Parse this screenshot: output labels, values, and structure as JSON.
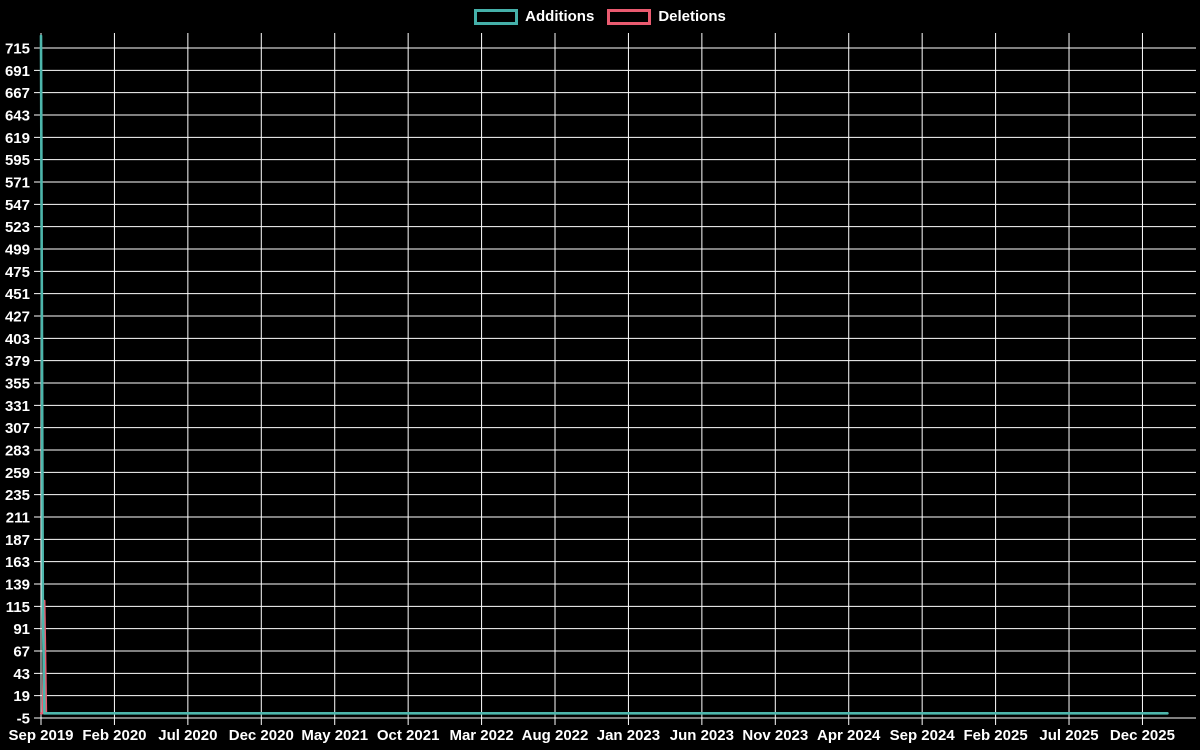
{
  "legend": {
    "items": [
      {
        "label": "Additions",
        "color": "#45b0a9"
      },
      {
        "label": "Deletions",
        "color": "#ea5b70"
      }
    ]
  },
  "chart_data": {
    "type": "line",
    "title": "",
    "xlabel": "",
    "ylabel": "",
    "legend_position": "top-center",
    "background_color": "#000000",
    "grid": true,
    "grid_color": "#ffffff",
    "axis_text_color": "#ffffff",
    "x_tick_labels": [
      "Sep 2019",
      "Feb 2020",
      "Jul 2020",
      "Dec 2020",
      "May 2021",
      "Oct 2021",
      "Mar 2022",
      "Aug 2022",
      "Jan 2023",
      "Jun 2023",
      "Nov 2023",
      "Apr 2024",
      "Sep 2024",
      "Feb 2025",
      "Jul 2025",
      "Dec 2025"
    ],
    "x_tick_spacing_months": 5,
    "y_ticks": [
      -5,
      19,
      43,
      67,
      91,
      115,
      139,
      163,
      187,
      211,
      235,
      259,
      283,
      307,
      331,
      355,
      379,
      403,
      427,
      451,
      475,
      499,
      523,
      547,
      571,
      595,
      619,
      643,
      667,
      691,
      715
    ],
    "ylim": [
      -5,
      730
    ],
    "xlim_months": [
      0,
      78.7
    ],
    "series": [
      {
        "name": "Deletions",
        "color": "#ea5b70",
        "points": [
          [
            0,
            0
          ],
          [
            0.12,
            0
          ],
          [
            0.23,
            121
          ],
          [
            0.35,
            0
          ],
          [
            76.7,
            0
          ]
        ]
      },
      {
        "name": "Additions",
        "color": "#4db6ac",
        "points": [
          [
            0,
            728
          ],
          [
            0.12,
            123
          ],
          [
            0.23,
            0
          ],
          [
            76.7,
            0
          ]
        ]
      }
    ]
  }
}
